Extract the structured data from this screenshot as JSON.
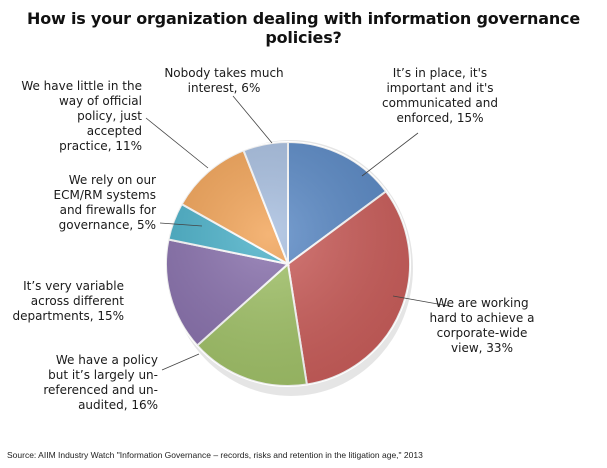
{
  "chart_data": {
    "type": "pie",
    "title": "How is your organization dealing with information governance policies?",
    "slices": [
      {
        "label": "It’s in place, it's important and it's communicated and enforced, 15%",
        "value": 15,
        "color": "#5b8ac6"
      },
      {
        "label": "We are working hard to achieve a corporate-wide view, 33%",
        "value": 33,
        "color": "#cc5f5c"
      },
      {
        "label": "We have a policy but it’s largely un-referenced and un-audited, 16%",
        "value": 16,
        "color": "#a3c46a"
      },
      {
        "label": "It’s very variable across different departments, 15%",
        "value": 15,
        "color": "#8a72ae"
      },
      {
        "label": "We rely on our ECM/RM systems and firewalls for governance, 5%",
        "value": 5,
        "color": "#4bb1c9"
      },
      {
        "label": "We have little in the way of official policy, just accepted practice, 11%",
        "value": 11,
        "color": "#f2a458"
      },
      {
        "label": "Nobody takes much interest, 6%",
        "value": 6,
        "color": "#a8bfe0"
      }
    ],
    "label_lines": [
      [
        "It’s in place, it's",
        "important and it's",
        "communicated and",
        "enforced, 15%"
      ],
      [
        "We are working",
        "hard to achieve a",
        "corporate-wide",
        "view, 33%"
      ],
      [
        "We have a policy",
        "but it’s largely un-",
        "referenced and un-",
        "audited, 16%"
      ],
      [
        "It’s very variable",
        "across different",
        "departments, 15%"
      ],
      [
        "We rely on our",
        "ECM/RM systems",
        "and firewalls for",
        "governance, 5%"
      ],
      [
        "We have little in the",
        "way of official",
        "policy, just accepted",
        "practice, 11%"
      ],
      [
        "Nobody takes much",
        "interest, 6%"
      ]
    ]
  },
  "source": "Source: AIIM Industry Watch \"Information Governance – records, risks and retention in the litigation age,\" 2013"
}
